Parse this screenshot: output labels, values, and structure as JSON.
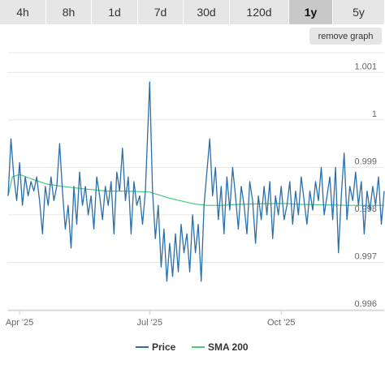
{
  "timeframes": [
    {
      "label": "4h"
    },
    {
      "label": "8h"
    },
    {
      "label": "1d"
    },
    {
      "label": "7d"
    },
    {
      "label": "30d"
    },
    {
      "label": "120d"
    },
    {
      "label": "1y",
      "active": true
    },
    {
      "label": "5y"
    }
  ],
  "remove_graph_label": "remove graph",
  "colors": {
    "price": "#2a6fa8",
    "sma": "#44cc77",
    "grid": "#e6e6e6"
  },
  "chart_data": {
    "type": "line",
    "title": "",
    "xlabel": "",
    "ylabel": "",
    "ylim": [
      0.996,
      1.0015
    ],
    "yticks": [
      {
        "v": 0.996,
        "label": "0.996"
      },
      {
        "v": 0.997,
        "label": "0.997"
      },
      {
        "v": 0.998,
        "label": "0.998"
      },
      {
        "v": 0.999,
        "label": "0.999"
      },
      {
        "v": 1.0,
        "label": "1"
      },
      {
        "v": 1.001,
        "label": "1.001"
      }
    ],
    "xlim": [
      "2025-03-24",
      "2025-12-12"
    ],
    "xticks": [
      {
        "date": "2025-04-01",
        "label": "Apr '25"
      },
      {
        "date": "2025-07-01",
        "label": "Jul '25"
      },
      {
        "date": "2025-10-01",
        "label": "Oct '25"
      }
    ],
    "legend": "bottom",
    "series": [
      {
        "name": "Price",
        "values": [
          [
            "2025-03-24",
            0.9984
          ],
          [
            "2025-03-26",
            0.9996
          ],
          [
            "2025-03-28",
            0.9988
          ],
          [
            "2025-03-30",
            0.9983
          ],
          [
            "2025-04-01",
            0.9991
          ],
          [
            "2025-04-03",
            0.9982
          ],
          [
            "2025-04-05",
            0.9988
          ],
          [
            "2025-04-07",
            0.9984
          ],
          [
            "2025-04-09",
            0.9987
          ],
          [
            "2025-04-11",
            0.9985
          ],
          [
            "2025-04-13",
            0.9988
          ],
          [
            "2025-04-15",
            0.9983
          ],
          [
            "2025-04-17",
            0.9976
          ],
          [
            "2025-04-19",
            0.9986
          ],
          [
            "2025-04-21",
            0.9982
          ],
          [
            "2025-04-23",
            0.9988
          ],
          [
            "2025-04-25",
            0.9983
          ],
          [
            "2025-04-27",
            0.9986
          ],
          [
            "2025-04-29",
            0.9995
          ],
          [
            "2025-05-01",
            0.9985
          ],
          [
            "2025-05-03",
            0.9977
          ],
          [
            "2025-05-05",
            0.9982
          ],
          [
            "2025-05-07",
            0.9973
          ],
          [
            "2025-05-09",
            0.9986
          ],
          [
            "2025-05-11",
            0.9978
          ],
          [
            "2025-05-13",
            0.9989
          ],
          [
            "2025-05-15",
            0.9982
          ],
          [
            "2025-05-17",
            0.9986
          ],
          [
            "2025-05-19",
            0.998
          ],
          [
            "2025-05-21",
            0.9984
          ],
          [
            "2025-05-23",
            0.9977
          ],
          [
            "2025-05-25",
            0.9988
          ],
          [
            "2025-05-27",
            0.9984
          ],
          [
            "2025-05-29",
            0.9979
          ],
          [
            "2025-05-31",
            0.9986
          ],
          [
            "2025-06-02",
            0.9982
          ],
          [
            "2025-06-04",
            0.9987
          ],
          [
            "2025-06-06",
            0.9976
          ],
          [
            "2025-06-08",
            0.9989
          ],
          [
            "2025-06-10",
            0.9985
          ],
          [
            "2025-06-12",
            0.9994
          ],
          [
            "2025-06-14",
            0.9983
          ],
          [
            "2025-06-16",
            0.9988
          ],
          [
            "2025-06-18",
            0.9976
          ],
          [
            "2025-06-20",
            0.9987
          ],
          [
            "2025-06-22",
            0.9982
          ],
          [
            "2025-06-24",
            0.9984
          ],
          [
            "2025-06-26",
            0.9978
          ],
          [
            "2025-06-28",
            0.9985
          ],
          [
            "2025-07-01",
            1.0008
          ],
          [
            "2025-07-03",
            0.9985
          ],
          [
            "2025-07-05",
            0.9975
          ],
          [
            "2025-07-07",
            0.9982
          ],
          [
            "2025-07-09",
            0.9969
          ],
          [
            "2025-07-11",
            0.9977
          ],
          [
            "2025-07-13",
            0.9966
          ],
          [
            "2025-07-15",
            0.9974
          ],
          [
            "2025-07-17",
            0.9967
          ],
          [
            "2025-07-19",
            0.9976
          ],
          [
            "2025-07-21",
            0.9968
          ],
          [
            "2025-07-23",
            0.9978
          ],
          [
            "2025-07-25",
            0.9972
          ],
          [
            "2025-07-27",
            0.9976
          ],
          [
            "2025-07-29",
            0.9968
          ],
          [
            "2025-07-31",
            0.998
          ],
          [
            "2025-08-02",
            0.9972
          ],
          [
            "2025-08-04",
            0.9978
          ],
          [
            "2025-08-06",
            0.9966
          ],
          [
            "2025-08-08",
            0.9982
          ],
          [
            "2025-08-10",
            0.9989
          ],
          [
            "2025-08-12",
            0.9996
          ],
          [
            "2025-08-14",
            0.9984
          ],
          [
            "2025-08-16",
            0.999
          ],
          [
            "2025-08-18",
            0.9979
          ],
          [
            "2025-08-20",
            0.9986
          ],
          [
            "2025-08-22",
            0.9976
          ],
          [
            "2025-08-24",
            0.9988
          ],
          [
            "2025-08-26",
            0.9981
          ],
          [
            "2025-08-28",
            0.999
          ],
          [
            "2025-08-30",
            0.9984
          ],
          [
            "2025-09-01",
            0.9977
          ],
          [
            "2025-09-03",
            0.9986
          ],
          [
            "2025-09-05",
            0.9982
          ],
          [
            "2025-09-07",
            0.9976
          ],
          [
            "2025-09-09",
            0.9987
          ],
          [
            "2025-09-11",
            0.9983
          ],
          [
            "2025-09-13",
            0.9974
          ],
          [
            "2025-09-15",
            0.9984
          ],
          [
            "2025-09-17",
            0.9979
          ],
          [
            "2025-09-19",
            0.9986
          ],
          [
            "2025-09-21",
            0.998
          ],
          [
            "2025-09-23",
            0.9987
          ],
          [
            "2025-09-25",
            0.9975
          ],
          [
            "2025-09-27",
            0.9984
          ],
          [
            "2025-09-29",
            0.998
          ],
          [
            "2025-10-01",
            0.9986
          ],
          [
            "2025-10-03",
            0.9979
          ],
          [
            "2025-10-05",
            0.9982
          ],
          [
            "2025-10-07",
            0.9987
          ],
          [
            "2025-10-09",
            0.9978
          ],
          [
            "2025-10-11",
            0.9985
          ],
          [
            "2025-10-13",
            0.998
          ],
          [
            "2025-10-15",
            0.9988
          ],
          [
            "2025-10-17",
            0.9983
          ],
          [
            "2025-10-19",
            0.9978
          ],
          [
            "2025-10-21",
            0.9985
          ],
          [
            "2025-10-23",
            0.9981
          ],
          [
            "2025-10-25",
            0.9987
          ],
          [
            "2025-10-27",
            0.9983
          ],
          [
            "2025-10-29",
            0.999
          ],
          [
            "2025-10-31",
            0.998
          ],
          [
            "2025-11-02",
            0.9984
          ],
          [
            "2025-11-04",
            0.9988
          ],
          [
            "2025-11-06",
            0.9979
          ],
          [
            "2025-11-08",
            0.999
          ],
          [
            "2025-11-10",
            0.9972
          ],
          [
            "2025-11-12",
            0.9984
          ],
          [
            "2025-11-14",
            0.9993
          ],
          [
            "2025-11-16",
            0.9979
          ],
          [
            "2025-11-18",
            0.9986
          ],
          [
            "2025-11-20",
            0.9983
          ],
          [
            "2025-11-22",
            0.9989
          ],
          [
            "2025-11-24",
            0.9982
          ],
          [
            "2025-11-26",
            0.9987
          ],
          [
            "2025-11-28",
            0.9976
          ],
          [
            "2025-11-30",
            0.9985
          ],
          [
            "2025-12-02",
            0.9981
          ],
          [
            "2025-12-04",
            0.9986
          ],
          [
            "2025-12-06",
            0.9982
          ],
          [
            "2025-12-08",
            0.9988
          ],
          [
            "2025-12-10",
            0.9978
          ],
          [
            "2025-12-12",
            0.9985
          ]
        ]
      },
      {
        "name": "SMA 200",
        "values": [
          [
            "2025-03-24",
            0.9984
          ],
          [
            "2025-03-27",
            0.9988
          ],
          [
            "2025-04-01",
            0.99885
          ],
          [
            "2025-04-10",
            0.99875
          ],
          [
            "2025-04-20",
            0.99865
          ],
          [
            "2025-05-01",
            0.9986
          ],
          [
            "2025-05-15",
            0.99855
          ],
          [
            "2025-06-01",
            0.9985
          ],
          [
            "2025-06-15",
            0.9985
          ],
          [
            "2025-07-01",
            0.99848
          ],
          [
            "2025-07-15",
            0.99835
          ],
          [
            "2025-08-01",
            0.99823
          ],
          [
            "2025-08-10",
            0.9982
          ],
          [
            "2025-08-20",
            0.9982
          ],
          [
            "2025-09-01",
            0.99822
          ],
          [
            "2025-09-15",
            0.99823
          ],
          [
            "2025-10-01",
            0.99824
          ],
          [
            "2025-10-15",
            0.99822
          ],
          [
            "2025-11-01",
            0.99821
          ],
          [
            "2025-11-15",
            0.9982
          ],
          [
            "2025-12-01",
            0.9982
          ],
          [
            "2025-12-12",
            0.9982
          ]
        ]
      }
    ]
  }
}
